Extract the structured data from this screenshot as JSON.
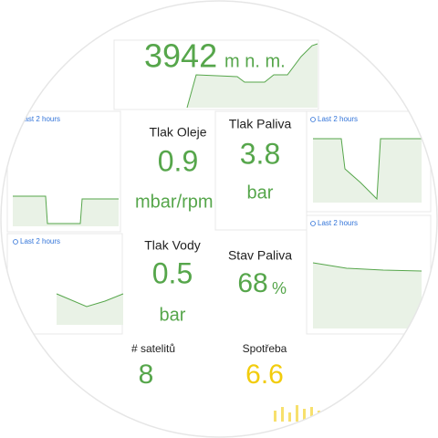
{
  "altitude": {
    "value": 3942,
    "unit": "m n. m."
  },
  "time_labels": [
    "Last 2 hours",
    "Last 2 hours",
    "Last 2 hours",
    "Last 2 hours"
  ],
  "panels": [
    {
      "title": "Tlak Oleje",
      "value": 0.9,
      "unit": "mbar/rpm"
    },
    {
      "title": "Tlak Paliva",
      "value": 3.8,
      "unit": "bar"
    },
    {
      "title": "Tlak Vody",
      "value": 0.5,
      "unit": "bar"
    },
    {
      "title": "Stav Paliva",
      "value": 68,
      "unit": "%"
    },
    {
      "title": "# satelitů",
      "value": 8
    },
    {
      "title": "Spotřeba",
      "value": 6.6
    }
  ]
}
